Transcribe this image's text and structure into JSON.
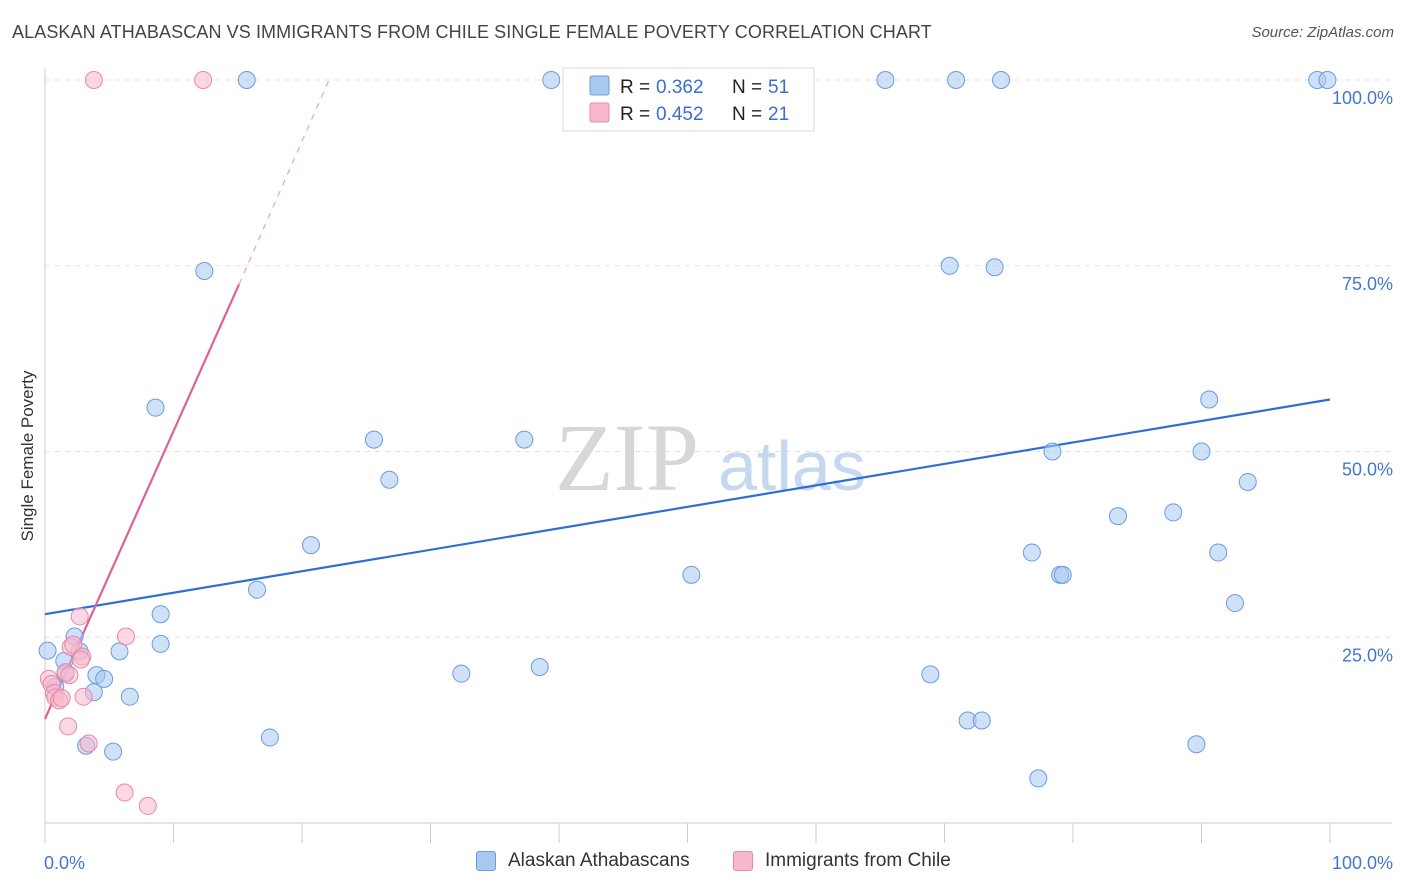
{
  "header": {
    "title": "ALASKAN ATHABASCAN VS IMMIGRANTS FROM CHILE SINGLE FEMALE POVERTY CORRELATION CHART",
    "source": "Source: ZipAtlas.com"
  },
  "watermark": {
    "zip": "ZIP",
    "atlas": "atlas"
  },
  "stats_box": {
    "rows": [
      {
        "r_label": "R =",
        "r_value": "0.362",
        "n_label": "N =",
        "n_value": "51"
      },
      {
        "r_label": "R =",
        "r_value": "0.452",
        "n_label": "N =",
        "n_value": "21"
      }
    ]
  },
  "colors": {
    "blue_fill": "#a8c8f0",
    "blue_stroke": "#6b9be0",
    "blue_line": "#2d6fd6",
    "pink_fill": "#f8b8cc",
    "pink_stroke": "#e888a8",
    "pink_line": "#e0609a",
    "grid": "#e3e3e3",
    "axis_label": "#4477cc"
  },
  "chart_data": {
    "type": "scatter",
    "title": "ALASKAN ATHABASCAN VS IMMIGRANTS FROM CHILE SINGLE FEMALE POVERTY CORRELATION CHART",
    "xlabel": "",
    "ylabel": "Single Female Poverty",
    "xlim": [
      0,
      100
    ],
    "ylim": [
      0,
      100
    ],
    "x_tick_labels": [
      "0.0%",
      "100.0%"
    ],
    "y_ticks": [
      25,
      50,
      75,
      100
    ],
    "y_tick_labels": [
      "25.0%",
      "50.0%",
      "75.0%",
      "100.0%"
    ],
    "legend_position": "bottom",
    "series": [
      {
        "name": "Alaskan Athabascans",
        "R": 0.362,
        "N": 51,
        "trend": {
          "x": [
            0,
            100
          ],
          "y": [
            28.1,
            57.0
          ],
          "dashed_extension": false
        },
        "points": [
          [
            0.2,
            23.2
          ],
          [
            0.8,
            18.3
          ],
          [
            1.5,
            21.8
          ],
          [
            1.6,
            20.1
          ],
          [
            2.3,
            25.1
          ],
          [
            2.7,
            23.1
          ],
          [
            3.2,
            10.4
          ],
          [
            3.8,
            17.6
          ],
          [
            4.0,
            19.9
          ],
          [
            4.6,
            19.4
          ],
          [
            5.3,
            9.6
          ],
          [
            5.8,
            23.1
          ],
          [
            6.6,
            17.0
          ],
          [
            8.6,
            55.9
          ],
          [
            9.0,
            28.1
          ],
          [
            9.0,
            24.1
          ],
          [
            12.4,
            74.3
          ],
          [
            15.7,
            100
          ],
          [
            16.5,
            31.4
          ],
          [
            17.5,
            11.5
          ],
          [
            20.7,
            37.4
          ],
          [
            25.6,
            51.6
          ],
          [
            26.8,
            46.2
          ],
          [
            32.4,
            20.1
          ],
          [
            37.3,
            51.6
          ],
          [
            38.5,
            21.0
          ],
          [
            39.4,
            100
          ],
          [
            50.3,
            33.4
          ],
          [
            65.4,
            100
          ],
          [
            68.9,
            20.0
          ],
          [
            70.4,
            75.0
          ],
          [
            70.9,
            100
          ],
          [
            71.8,
            13.8
          ],
          [
            72.9,
            13.8
          ],
          [
            73.9,
            74.8
          ],
          [
            74.4,
            100
          ],
          [
            76.8,
            36.4
          ],
          [
            77.3,
            6.0
          ],
          [
            79.0,
            33.4
          ],
          [
            79.2,
            33.4
          ],
          [
            78.4,
            50.0
          ],
          [
            83.5,
            41.3
          ],
          [
            87.8,
            41.8
          ],
          [
            89.6,
            10.6
          ],
          [
            90.0,
            50.0
          ],
          [
            90.6,
            57.0
          ],
          [
            91.3,
            36.4
          ],
          [
            92.6,
            29.6
          ],
          [
            93.6,
            45.9
          ],
          [
            99.0,
            100
          ],
          [
            99.8,
            100
          ]
        ]
      },
      {
        "name": "Immigrants from Chile",
        "R": 0.452,
        "N": 21,
        "trend": {
          "x": [
            0,
            15.1
          ],
          "y": [
            14.0,
            72.5
          ],
          "dashed_to": {
            "x": 22.1,
            "y": 100
          }
        },
        "points": [
          [
            0.3,
            19.4
          ],
          [
            0.5,
            18.7
          ],
          [
            0.7,
            17.5
          ],
          [
            0.8,
            16.9
          ],
          [
            1.1,
            16.5
          ],
          [
            1.3,
            16.8
          ],
          [
            1.6,
            20.3
          ],
          [
            1.9,
            19.9
          ],
          [
            1.8,
            13.0
          ],
          [
            2.0,
            23.7
          ],
          [
            2.2,
            24.0
          ],
          [
            2.7,
            27.8
          ],
          [
            2.9,
            22.4
          ],
          [
            2.8,
            22.0
          ],
          [
            3.0,
            17.0
          ],
          [
            3.4,
            10.7
          ],
          [
            3.8,
            100
          ],
          [
            6.3,
            25.1
          ],
          [
            6.2,
            4.1
          ],
          [
            8.0,
            2.3
          ],
          [
            12.3,
            100
          ]
        ]
      }
    ]
  }
}
